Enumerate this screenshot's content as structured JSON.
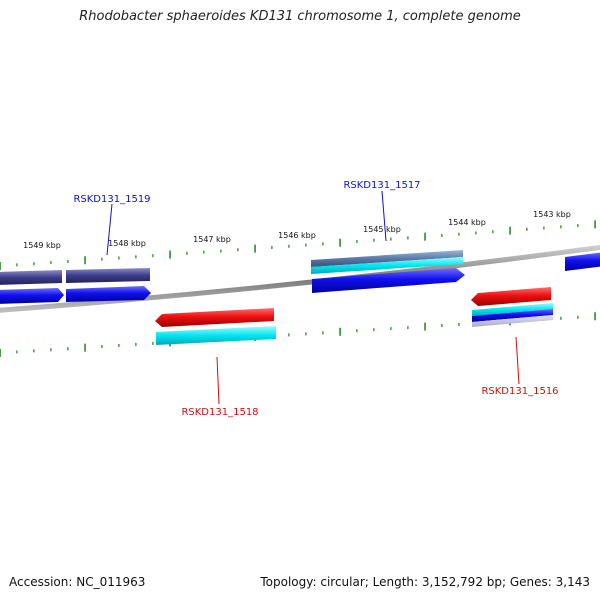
{
  "title": "Rhodobacter sphaeroides KD131 chromosome 1, complete genome",
  "footer": {
    "accession": "Accession: NC_011963",
    "stats": "Topology: circular; Length: 3,152,792 bp; Genes: 3,143"
  },
  "colors": {
    "forward_gene": "#1010ee",
    "reverse_gene": "#ee1010",
    "forward_label": "#1010cc",
    "reverse_label": "#cc1010",
    "tick": "#2a8a2a",
    "backbone": "#8c8c8c"
  },
  "scale": {
    "unit": "kbp",
    "ticks": [
      {
        "kbp": 1549,
        "label": "1549 kbp"
      },
      {
        "kbp": 1548,
        "label": "1548 kbp"
      },
      {
        "kbp": 1547,
        "label": "1547 kbp"
      },
      {
        "kbp": 1546,
        "label": "1546 kbp"
      },
      {
        "kbp": 1545,
        "label": "1545 kbp"
      },
      {
        "kbp": 1544,
        "label": "1544 kbp"
      },
      {
        "kbp": 1543,
        "label": "1543 kbp"
      }
    ]
  },
  "genes": [
    {
      "label": "RSKD131_1519",
      "strand": "forward"
    },
    {
      "label": "RSKD131_1517",
      "strand": "forward"
    },
    {
      "label": "RSKD131_1518",
      "strand": "reverse"
    },
    {
      "label": "RSKD131_1516",
      "strand": "reverse"
    }
  ]
}
